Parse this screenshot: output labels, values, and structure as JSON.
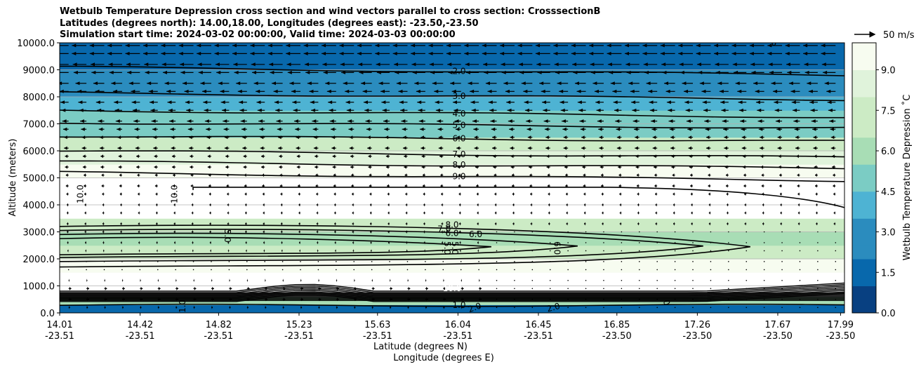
{
  "chart_data": {
    "type": "heatmap",
    "title_lines": [
      "Wetbulb Temperature Depression cross section and wind vectors parallel to cross section: CrosssectionB",
      "Latitudes (degrees north): 14.00,18.00, Longitudes (degrees east): -23.50,-23.50",
      "Simulation start time: 2024-03-02 00:00:00, Valid time: 2024-03-03 00:00:00"
    ],
    "xlabel_lat": "Latitude (degrees N)",
    "xlabel_lon": "Longitude (degrees E)",
    "ylabel": "Altitude (meters)",
    "colorbar_label": "Wetbulb Temperature Depression ˚C",
    "vector_key_label": "50 m/s",
    "xlim": [
      0,
      1
    ],
    "ylim": [
      0,
      10000
    ],
    "x_ticks": [
      {
        "lat": "14.01",
        "lon": "-23.51",
        "pos": 0.0
      },
      {
        "lat": "14.42",
        "lon": "-23.51",
        "pos": 0.1025
      },
      {
        "lat": "14.82",
        "lon": "-23.51",
        "pos": 0.2025
      },
      {
        "lat": "15.23",
        "lon": "-23.51",
        "pos": 0.305
      },
      {
        "lat": "15.63",
        "lon": "-23.51",
        "pos": 0.405
      },
      {
        "lat": "16.04",
        "lon": "-23.51",
        "pos": 0.5075
      },
      {
        "lat": "16.45",
        "lon": "-23.51",
        "pos": 0.61
      },
      {
        "lat": "16.85",
        "lon": "-23.50",
        "pos": 0.71
      },
      {
        "lat": "17.26",
        "lon": "-23.50",
        "pos": 0.8125
      },
      {
        "lat": "17.67",
        "lon": "-23.50",
        "pos": 0.915
      },
      {
        "lat": "17.99",
        "lon": "-23.50",
        "pos": 0.995
      }
    ],
    "y_ticks": [
      "0.0",
      "1000.0",
      "2000.0",
      "3000.0",
      "4000.0",
      "5000.0",
      "6000.0",
      "7000.0",
      "8000.0",
      "9000.0",
      "10000.0"
    ],
    "y_tick_values": [
      0,
      1000,
      2000,
      3000,
      4000,
      5000,
      6000,
      7000,
      8000,
      9000,
      10000
    ],
    "colorbar_ticks": [
      "0.0",
      "1.5",
      "3.0",
      "4.5",
      "6.0",
      "7.5",
      "9.0"
    ],
    "colorbar_tick_values": [
      0,
      1.5,
      3.0,
      4.5,
      6.0,
      7.5,
      9.0
    ],
    "colorbar_range": [
      0,
      10
    ],
    "grid": "horizontal",
    "depression_profile": [
      {
        "alt": 0,
        "value": 1.0
      },
      {
        "alt": 300,
        "value": 1.5
      },
      {
        "alt": 600,
        "value": 10.5
      },
      {
        "alt": 1000,
        "value": 10.5
      },
      {
        "alt": 1500,
        "value": 10.0
      },
      {
        "alt": 2000,
        "value": 8.0
      },
      {
        "alt": 2500,
        "value": 6.0
      },
      {
        "alt": 3000,
        "value": 6.5
      },
      {
        "alt": 3500,
        "value": 9.0
      },
      {
        "alt": 4000,
        "value": 10.5
      },
      {
        "alt": 4500,
        "value": 10.5
      },
      {
        "alt": 5000,
        "value": 9.5
      },
      {
        "alt": 5500,
        "value": 8.5
      },
      {
        "alt": 6000,
        "value": 7.5
      },
      {
        "alt": 6500,
        "value": 6.0
      },
      {
        "alt": 7000,
        "value": 5.0
      },
      {
        "alt": 7500,
        "value": 4.2
      },
      {
        "alt": 8000,
        "value": 3.2
      },
      {
        "alt": 8500,
        "value": 2.6
      },
      {
        "alt": 9000,
        "value": 2.0
      },
      {
        "alt": 9500,
        "value": 1.6
      },
      {
        "alt": 10000,
        "value": 1.2
      }
    ],
    "contour_levels": [
      {
        "label": "1.0",
        "alt": 280,
        "tilt": 0
      },
      {
        "label": "2.0",
        "alt": 9100,
        "tilt": 300
      },
      {
        "label": "3.0",
        "alt": 8150,
        "tilt": 250
      },
      {
        "label": "4.0",
        "alt": 7500,
        "tilt": 250
      },
      {
        "label": "5.0",
        "alt": 7050,
        "tilt": 200
      },
      {
        "label": "6.0",
        "alt": 6550,
        "tilt": 200
      },
      {
        "label": "7.0",
        "alt": 6000,
        "tilt": 250
      },
      {
        "label": "8.0",
        "alt": 5600,
        "tilt": 250
      },
      {
        "label": "9.0",
        "alt": 5200,
        "tilt": 300
      }
    ],
    "extra_contour_labels": [
      {
        "label": "10.0",
        "alt": 4400,
        "pos": 0.03,
        "rotate": -90
      },
      {
        "label": "10.0",
        "alt": 4400,
        "pos": 0.15,
        "rotate": -90
      },
      {
        "label": "5.0",
        "alt": 2850,
        "pos": 0.21,
        "rotate": 90
      },
      {
        "label": "8.0",
        "alt": 3150,
        "pos": 0.5,
        "rotate": 0
      },
      {
        "label": "7.0",
        "alt": 3000,
        "pos": 0.49,
        "rotate": 0
      },
      {
        "label": "6.0",
        "alt": 2850,
        "pos": 0.5,
        "rotate": 0
      },
      {
        "label": "6.0",
        "alt": 2800,
        "pos": 0.53,
        "rotate": 0
      },
      {
        "label": "5.0",
        "alt": 2400,
        "pos": 0.49,
        "rotate": 90
      },
      {
        "label": "5.0",
        "alt": 2400,
        "pos": 0.5,
        "rotate": 90
      },
      {
        "label": "6.0",
        "alt": 2400,
        "pos": 0.63,
        "rotate": 90
      },
      {
        "label": "2.0",
        "alt": 100,
        "pos": 0.53,
        "rotate": -20
      },
      {
        "label": "2.0",
        "alt": 100,
        "pos": 0.63,
        "rotate": -15
      },
      {
        "label": "1.0",
        "alt": 250,
        "pos": 0.16,
        "rotate": -90
      },
      {
        "label": "10.0",
        "alt": 800,
        "pos": 0.5,
        "rotate": 0
      },
      {
        "label": "0",
        "alt": 350,
        "pos": 0.77,
        "rotate": 70
      },
      {
        "label": "0",
        "alt": 9900,
        "pos": 0.91,
        "rotate": 0
      }
    ],
    "wind_levels": [
      {
        "alt": 9900,
        "u": -8
      },
      {
        "alt": 9600,
        "u": -8
      },
      {
        "alt": 9200,
        "u": -7.5
      },
      {
        "alt": 8900,
        "u": -7
      },
      {
        "alt": 8500,
        "u": -6
      },
      {
        "alt": 8200,
        "u": -5
      },
      {
        "alt": 7800,
        "u": -4.5
      },
      {
        "alt": 7500,
        "u": -4
      },
      {
        "alt": 7100,
        "u": -3.5
      },
      {
        "alt": 6800,
        "u": -3
      },
      {
        "alt": 6500,
        "u": -2.5
      },
      {
        "alt": 6100,
        "u": -2.5
      },
      {
        "alt": 5800,
        "u": -2
      },
      {
        "alt": 5400,
        "u": -2
      },
      {
        "alt": 5100,
        "u": -1.5
      },
      {
        "alt": 4700,
        "u": -1.5
      },
      {
        "alt": 4400,
        "u": -1.2
      },
      {
        "alt": 4000,
        "u": -1
      },
      {
        "alt": 3700,
        "u": -1
      },
      {
        "alt": 3300,
        "u": -1
      },
      {
        "alt": 3000,
        "u": -1
      },
      {
        "alt": 2600,
        "u": -0.8
      },
      {
        "alt": 2300,
        "u": -0.6
      },
      {
        "alt": 1900,
        "u": -0.4
      },
      {
        "alt": 1600,
        "u": -0.3
      },
      {
        "alt": 1200,
        "u": 0.5
      },
      {
        "alt": 900,
        "u": 1.5
      },
      {
        "alt": 500,
        "u": 1.5
      },
      {
        "alt": 200,
        "u": 0.8
      }
    ],
    "vector_key_speed": 50
  },
  "colors": {
    "colormap": [
      "#084081",
      "#0868ac",
      "#2b8cbe",
      "#4eb3d3",
      "#7bccc4",
      "#a8ddb5",
      "#ccebc5",
      "#e0f3db",
      "#f7fcf0"
    ],
    "contour": "#000000",
    "grid": "#b0b0b0"
  }
}
